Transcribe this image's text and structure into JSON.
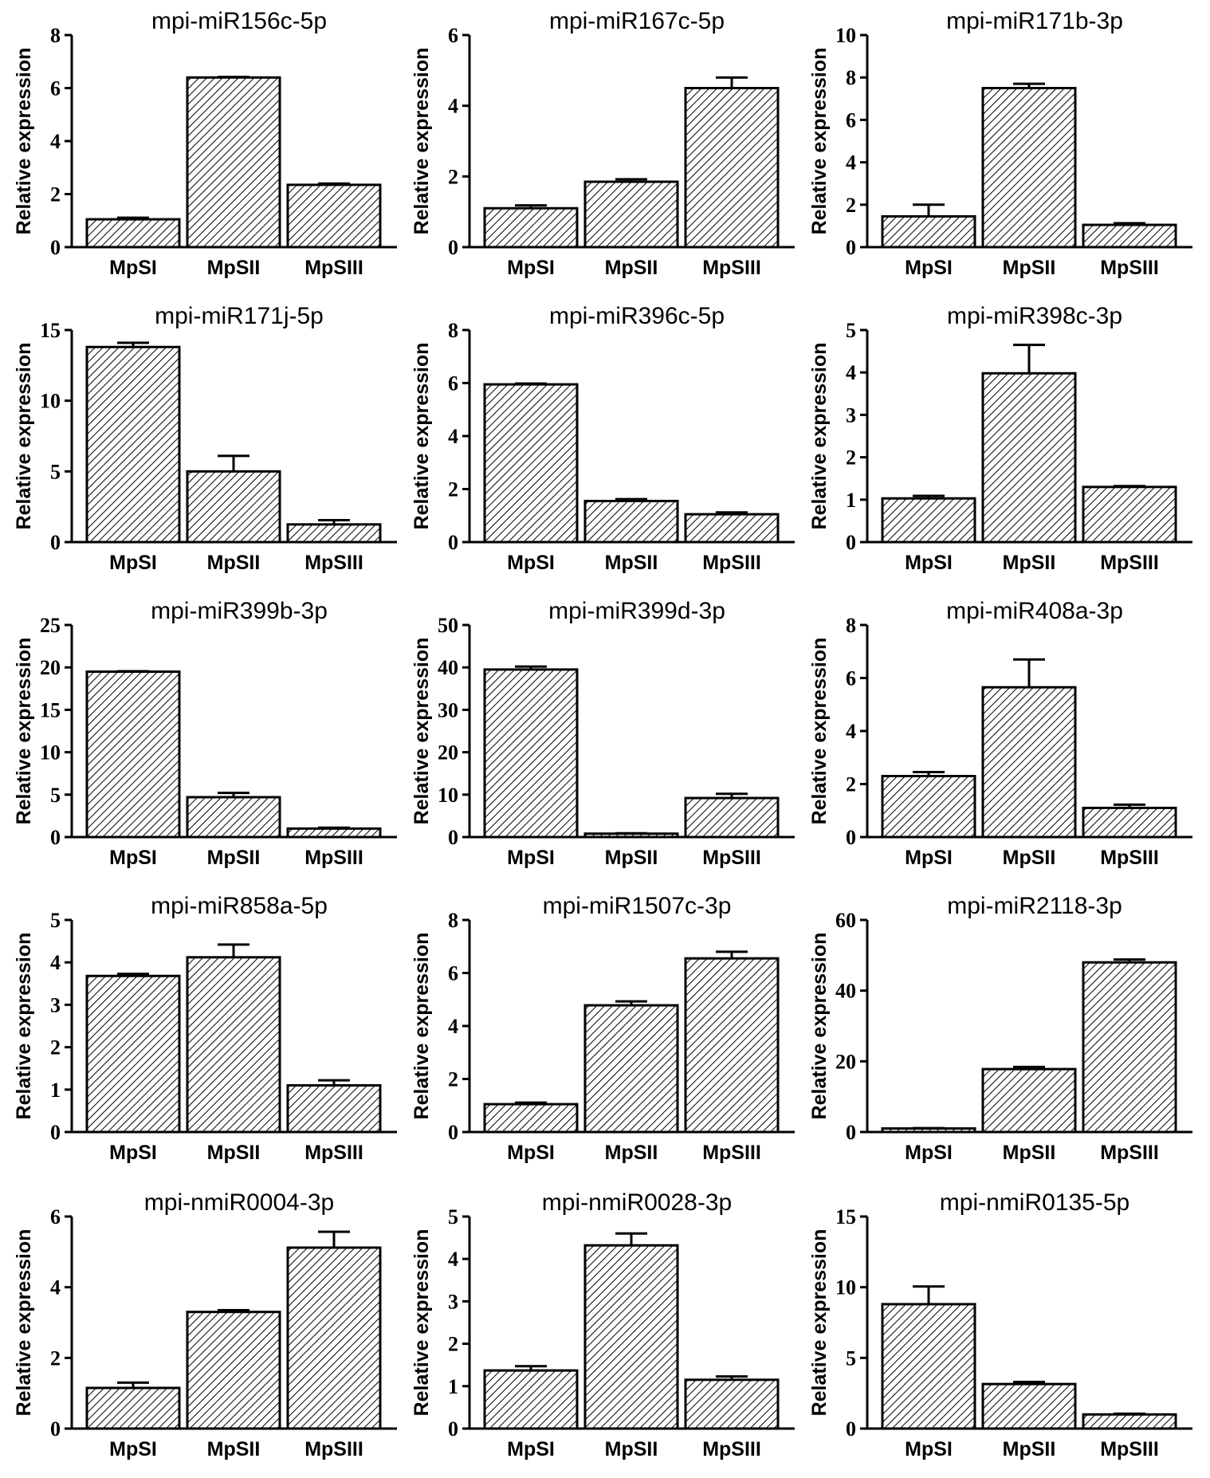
{
  "chart_data": [
    {
      "type": "bar",
      "title": "mpi-miR156c-5p",
      "ylabel": "Relative expression",
      "categories": [
        "MpSI",
        "MpSII",
        "MpSIII"
      ],
      "values": [
        1.05,
        6.4,
        2.35
      ],
      "errors": [
        0.06,
        0.02,
        0.05
      ],
      "ylim": [
        0,
        8
      ],
      "yticks": [
        0,
        2,
        4,
        6,
        8
      ]
    },
    {
      "type": "bar",
      "title": "mpi-miR167c-5p",
      "ylabel": "Relative expression",
      "categories": [
        "MpSI",
        "MpSII",
        "MpSIII"
      ],
      "values": [
        1.1,
        1.85,
        4.5
      ],
      "errors": [
        0.08,
        0.07,
        0.3
      ],
      "ylim": [
        0,
        6
      ],
      "yticks": [
        0,
        2,
        4,
        6
      ]
    },
    {
      "type": "bar",
      "title": "mpi-miR171b-3p",
      "ylabel": "Relative expression",
      "categories": [
        "MpSI",
        "MpSII",
        "MpSIII"
      ],
      "values": [
        1.45,
        7.5,
        1.05
      ],
      "errors": [
        0.55,
        0.2,
        0.08
      ],
      "ylim": [
        0,
        10
      ],
      "yticks": [
        0,
        2,
        4,
        6,
        8,
        10
      ]
    },
    {
      "type": "bar",
      "title": "mpi-miR171j-5p",
      "ylabel": "Relative expression",
      "categories": [
        "MpSI",
        "MpSII",
        "MpSIII"
      ],
      "values": [
        13.8,
        5.0,
        1.25
      ],
      "errors": [
        0.3,
        1.1,
        0.3
      ],
      "ylim": [
        0,
        15
      ],
      "yticks": [
        0,
        5,
        10,
        15
      ]
    },
    {
      "type": "bar",
      "title": "mpi-miR396c-5p",
      "ylabel": "Relative expression",
      "categories": [
        "MpSI",
        "MpSII",
        "MpSIII"
      ],
      "values": [
        5.95,
        1.55,
        1.05
      ],
      "errors": [
        0.03,
        0.07,
        0.07
      ],
      "ylim": [
        0,
        8
      ],
      "yticks": [
        0,
        2,
        4,
        6,
        8
      ]
    },
    {
      "type": "bar",
      "title": "mpi-miR398c-3p",
      "ylabel": "Relative expression",
      "categories": [
        "MpSI",
        "MpSII",
        "MpSIII"
      ],
      "values": [
        1.03,
        3.98,
        1.3
      ],
      "errors": [
        0.06,
        0.67,
        0.02
      ],
      "ylim": [
        0,
        5
      ],
      "yticks": [
        0,
        1,
        2,
        3,
        4,
        5
      ]
    },
    {
      "type": "bar",
      "title": "mpi-miR399b-3p",
      "ylabel": "Relative expression",
      "categories": [
        "MpSI",
        "MpSII",
        "MpSIII"
      ],
      "values": [
        19.5,
        4.7,
        1.0
      ],
      "errors": [
        0.05,
        0.5,
        0.1
      ],
      "ylim": [
        0,
        25
      ],
      "yticks": [
        0,
        5,
        10,
        15,
        20,
        25
      ]
    },
    {
      "type": "bar",
      "title": "mpi-miR399d-3p",
      "ylabel": "Relative expression",
      "categories": [
        "MpSI",
        "MpSII",
        "MpSIII"
      ],
      "values": [
        39.5,
        0.8,
        9.2
      ],
      "errors": [
        0.7,
        0.1,
        1.0
      ],
      "ylim": [
        0,
        50
      ],
      "yticks": [
        0,
        10,
        20,
        30,
        40,
        50
      ]
    },
    {
      "type": "bar",
      "title": "mpi-miR408a-3p",
      "ylabel": "Relative expression",
      "categories": [
        "MpSI",
        "MpSII",
        "MpSIII"
      ],
      "values": [
        2.3,
        5.65,
        1.1
      ],
      "errors": [
        0.15,
        1.05,
        0.12
      ],
      "ylim": [
        0,
        8
      ],
      "yticks": [
        0,
        2,
        4,
        6,
        8
      ]
    },
    {
      "type": "bar",
      "title": "mpi-miR858a-5p",
      "ylabel": "Relative expression",
      "categories": [
        "MpSI",
        "MpSII",
        "MpSIII"
      ],
      "values": [
        3.68,
        4.12,
        1.1
      ],
      "errors": [
        0.05,
        0.3,
        0.12
      ],
      "ylim": [
        0,
        5
      ],
      "yticks": [
        0,
        1,
        2,
        3,
        4,
        5
      ]
    },
    {
      "type": "bar",
      "title": "mpi-miR1507c-3p",
      "ylabel": "Relative expression",
      "categories": [
        "MpSI",
        "MpSII",
        "MpSIII"
      ],
      "values": [
        1.05,
        4.78,
        6.55
      ],
      "errors": [
        0.06,
        0.15,
        0.25
      ],
      "ylim": [
        0,
        8
      ],
      "yticks": [
        0,
        2,
        4,
        6,
        8
      ]
    },
    {
      "type": "bar",
      "title": "mpi-miR2118-3p",
      "ylabel": "Relative expression",
      "categories": [
        "MpSI",
        "MpSII",
        "MpSIII"
      ],
      "values": [
        1.0,
        17.8,
        48.0
      ],
      "errors": [
        0.1,
        0.6,
        0.8
      ],
      "ylim": [
        0,
        60
      ],
      "yticks": [
        0,
        20,
        40,
        60
      ]
    },
    {
      "type": "bar",
      "title": "mpi-nmiR0004-3p",
      "ylabel": "Relative expression",
      "categories": [
        "MpSI",
        "MpSII",
        "MpSIII"
      ],
      "values": [
        1.15,
        3.3,
        5.12
      ],
      "errors": [
        0.15,
        0.05,
        0.45
      ],
      "ylim": [
        0,
        6
      ],
      "yticks": [
        0,
        2,
        4,
        6
      ]
    },
    {
      "type": "bar",
      "title": "mpi-nmiR0028-3p",
      "ylabel": "Relative expression",
      "categories": [
        "MpSI",
        "MpSII",
        "MpSIII"
      ],
      "values": [
        1.37,
        4.32,
        1.15
      ],
      "errors": [
        0.1,
        0.28,
        0.08
      ],
      "ylim": [
        0,
        5
      ],
      "yticks": [
        0,
        1,
        2,
        3,
        4,
        5
      ]
    },
    {
      "type": "bar",
      "title": "mpi-nmiR0135-5p",
      "ylabel": "Relative expression",
      "categories": [
        "MpSI",
        "MpSII",
        "MpSIII"
      ],
      "values": [
        8.8,
        3.15,
        1.0
      ],
      "errors": [
        1.25,
        0.15,
        0.05
      ],
      "ylim": [
        0,
        15
      ],
      "yticks": [
        0,
        5,
        10,
        15
      ]
    }
  ]
}
